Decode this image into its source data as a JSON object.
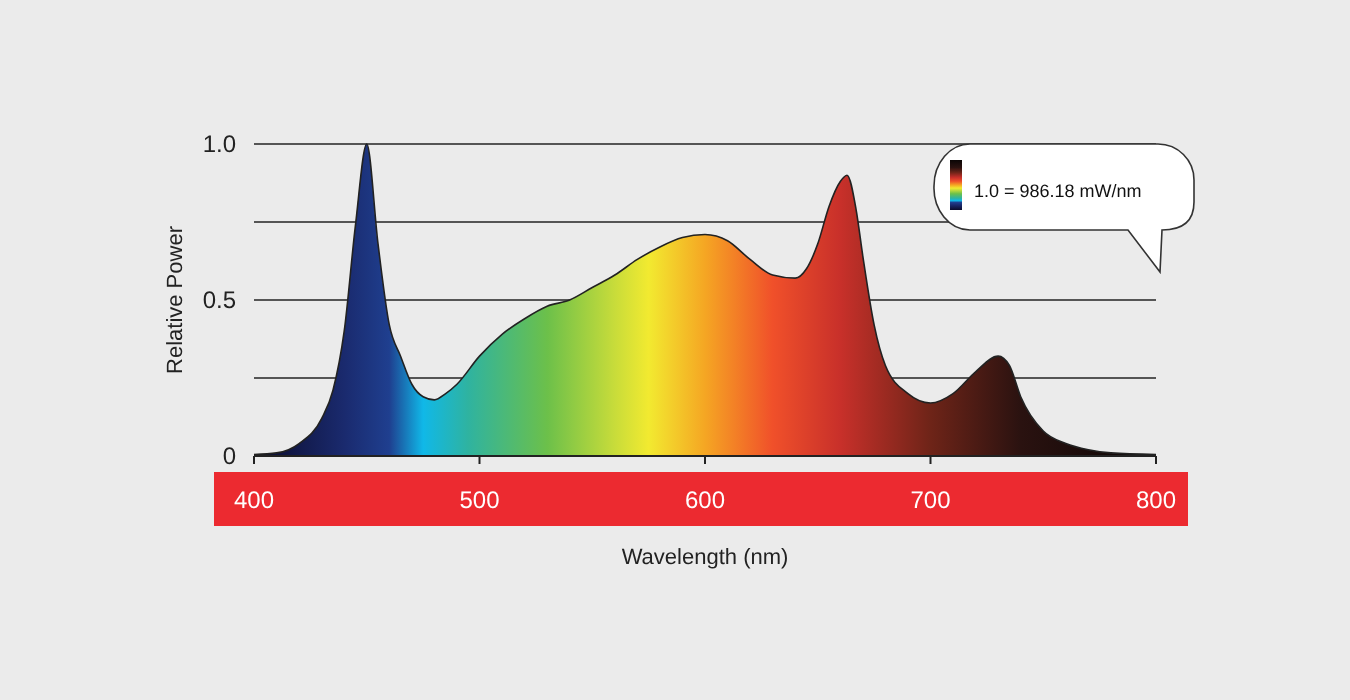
{
  "chart_data": {
    "type": "area",
    "xlabel": "Wavelength (nm)",
    "ylabel": "Relative Power",
    "x": [
      400,
      410,
      420,
      430,
      435,
      440,
      445,
      450,
      455,
      460,
      465,
      470,
      475,
      480,
      485,
      490,
      500,
      510,
      520,
      530,
      540,
      550,
      560,
      570,
      580,
      590,
      600,
      610,
      620,
      630,
      640,
      645,
      650,
      655,
      660,
      663,
      667,
      670,
      675,
      680,
      690,
      700,
      710,
      720,
      730,
      735,
      740,
      750,
      760,
      770,
      780,
      800
    ],
    "series": [
      {
        "color": "#222222",
        "values": [
          0.005,
          0.01,
          0.04,
          0.12,
          0.21,
          0.4,
          0.74,
          1.0,
          0.68,
          0.42,
          0.32,
          0.23,
          0.19,
          0.18,
          0.2,
          0.23,
          0.32,
          0.39,
          0.44,
          0.48,
          0.5,
          0.54,
          0.58,
          0.63,
          0.67,
          0.7,
          0.71,
          0.69,
          0.63,
          0.58,
          0.57,
          0.6,
          0.68,
          0.8,
          0.88,
          0.9,
          0.79,
          0.64,
          0.42,
          0.29,
          0.2,
          0.17,
          0.2,
          0.27,
          0.32,
          0.29,
          0.19,
          0.08,
          0.04,
          0.02,
          0.01,
          0.005
        ]
      }
    ],
    "xlim": [
      400,
      800
    ],
    "xticks": [
      400,
      500,
      600,
      700,
      800
    ],
    "ylim": [
      0,
      1
    ],
    "yticks": [
      0,
      {
        "value": 0.25,
        "label": null
      },
      0.5,
      {
        "value": 0.75,
        "label": null
      },
      {
        "value": 1,
        "label": "1.0"
      }
    ],
    "grid": "y",
    "annotations": [
      "1.0 = 986.18 mW/nm"
    ]
  }
}
